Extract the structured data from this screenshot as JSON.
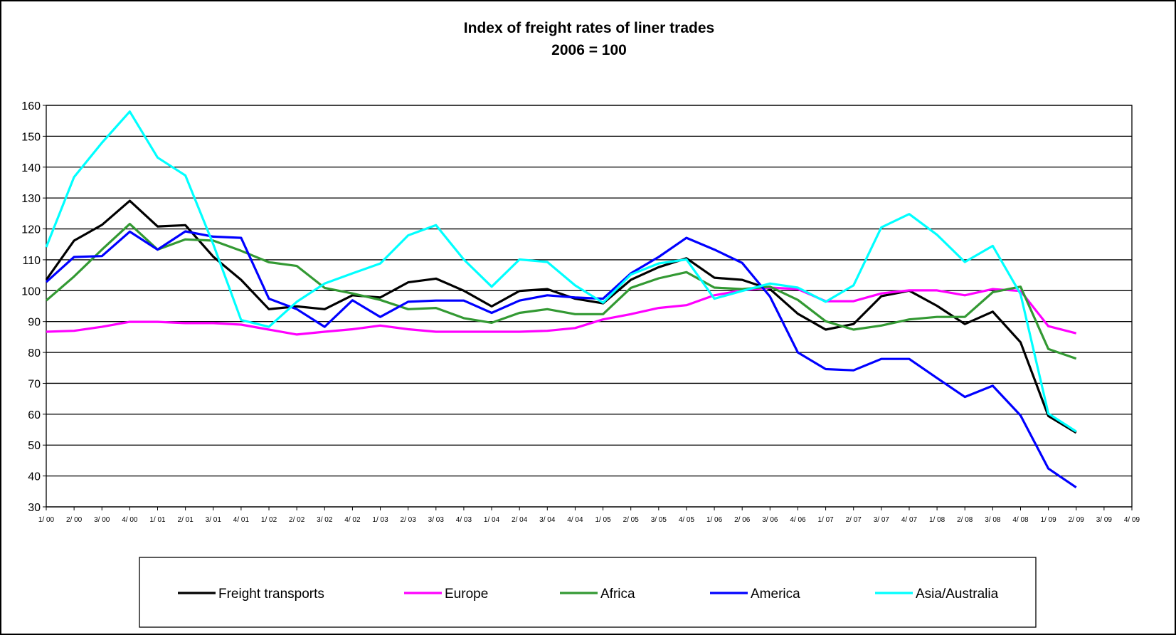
{
  "chart_data": {
    "type": "line",
    "title": "Index of freight rates of liner trades",
    "subtitle": "2006 = 100",
    "xlabel": "",
    "ylabel": "",
    "ylim": [
      30,
      160
    ],
    "yticks": [
      "30",
      "40",
      "50",
      "60",
      "70",
      "80",
      "90",
      "100",
      "110",
      "120",
      "130",
      "140",
      "150",
      "160"
    ],
    "grid": "horizontal",
    "legend_position": "bottom",
    "categories": [
      "1/ 00",
      "2/ 00",
      "3/ 00",
      "4/ 00",
      "1/ 01",
      "2/ 01",
      "3/ 01",
      "4/ 01",
      "1/ 02",
      "2/ 02",
      "3/ 02",
      "4/ 02",
      "1/ 03",
      "2/ 03",
      "3/ 03",
      "4/ 03",
      "1/ 04",
      "2/ 04",
      "3/ 04",
      "4/ 04",
      "1/ 05",
      "2/ 05",
      "3/ 05",
      "4/ 05",
      "1/ 06",
      "2/ 06",
      "3/ 06",
      "4/ 06",
      "1/ 07",
      "2/ 07",
      "3/ 07",
      "4/ 07",
      "1/ 08",
      "2/ 08",
      "3/ 08",
      "4/ 08",
      "1/ 09",
      "2/ 09",
      "3/ 09",
      "4/ 09"
    ],
    "series": [
      {
        "name": "Freight transports",
        "color": "#000000",
        "values": [
          103.5,
          116.2,
          121.3,
          129.1,
          120.8,
          121.2,
          111.0,
          103.5,
          94.0,
          94.9,
          94.0,
          98.5,
          97.8,
          102.7,
          103.9,
          100.0,
          94.9,
          99.9,
          100.5,
          97.4,
          95.9,
          103.5,
          107.6,
          110.5,
          104.2,
          103.5,
          100.5,
          92.5,
          87.4,
          89.2,
          98.2,
          100.0,
          95.1,
          89.2,
          93.2,
          83.3,
          59.4,
          54.0,
          null,
          null
        ]
      },
      {
        "name": "Europe",
        "color": "#ff00ff",
        "values": [
          86.7,
          87.0,
          88.3,
          89.9,
          89.9,
          89.5,
          89.5,
          89.0,
          87.4,
          85.8,
          86.7,
          87.5,
          88.7,
          87.5,
          86.7,
          86.7,
          86.7,
          86.7,
          87.0,
          87.9,
          90.7,
          92.4,
          94.4,
          95.3,
          98.5,
          100.1,
          101.0,
          100.5,
          96.6,
          96.6,
          99.1,
          100.1,
          100.1,
          98.5,
          100.5,
          99.9,
          88.5,
          86.2,
          null,
          null
        ]
      },
      {
        "name": "Africa",
        "color": "#339933",
        "values": [
          96.8,
          104.6,
          113.3,
          121.6,
          113.3,
          116.6,
          116.2,
          112.9,
          109.2,
          108.0,
          100.9,
          99.1,
          97.0,
          94.0,
          94.4,
          91.1,
          89.6,
          92.8,
          94.0,
          92.4,
          92.4,
          100.9,
          104.0,
          106.0,
          101.0,
          100.5,
          101.3,
          97.0,
          90.1,
          87.4,
          88.7,
          90.7,
          91.5,
          91.5,
          99.5,
          101.3,
          81.1,
          78.0,
          null,
          null
        ]
      },
      {
        "name": "America",
        "color": "#0000ff",
        "values": [
          102.8,
          110.9,
          111.2,
          119.1,
          113.3,
          119.2,
          117.5,
          117.1,
          97.4,
          94.0,
          88.3,
          96.9,
          91.5,
          96.4,
          96.8,
          96.8,
          92.8,
          96.8,
          98.5,
          97.8,
          97.4,
          105.6,
          110.9,
          117.1,
          113.3,
          109.0,
          98.1,
          80.0,
          74.6,
          74.2,
          77.9,
          77.9,
          71.7,
          65.6,
          69.2,
          59.6,
          42.4,
          36.3,
          null,
          null
        ]
      },
      {
        "name": "Asia/Australia",
        "color": "#00ffff",
        "values": [
          114.1,
          136.8,
          147.9,
          158.0,
          143.1,
          137.3,
          115.0,
          90.5,
          88.3,
          96.4,
          102.3,
          105.6,
          108.8,
          117.9,
          121.2,
          110.1,
          101.3,
          110.1,
          109.3,
          101.7,
          96.1,
          105.2,
          108.8,
          110.1,
          97.4,
          99.9,
          102.3,
          101.0,
          96.4,
          101.7,
          120.5,
          124.8,
          118.1,
          109.3,
          114.5,
          98.9,
          60.2,
          54.4,
          null,
          null
        ]
      }
    ]
  }
}
